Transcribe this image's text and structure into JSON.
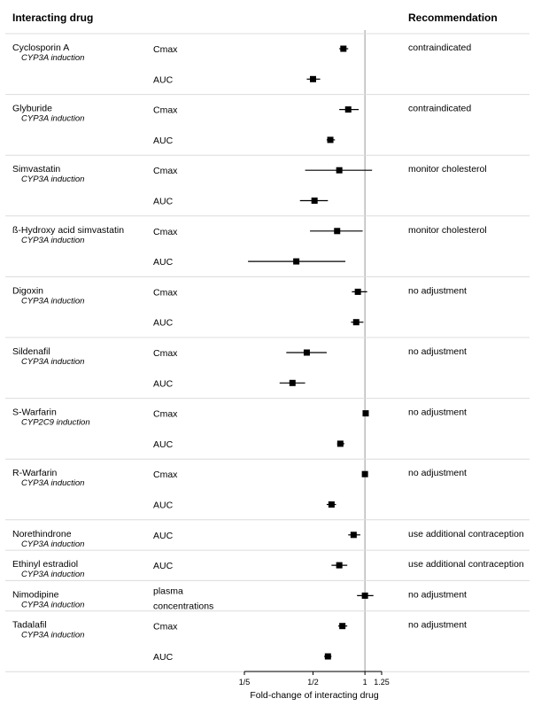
{
  "headers": {
    "drug": "Interacting drug",
    "recommendation": "Recommendation"
  },
  "chart_data": {
    "type": "forest",
    "xlabel": "Fold-change of interacting drug",
    "xscale": "log",
    "xlim": [
      0.2,
      1.25
    ],
    "xticks": [
      {
        "value": 0.2,
        "label": "1/5"
      },
      {
        "value": 0.5,
        "label": "1/2"
      },
      {
        "value": 1,
        "label": "1"
      },
      {
        "value": 1.25,
        "label": "1.25"
      }
    ],
    "reference_line": 1,
    "groups": [
      {
        "drug": "Cyclosporin A",
        "mechanism": "CYP3A induction",
        "recommendation": "contraindicated",
        "rows": [
          {
            "param": "Cmax",
            "est": 0.75,
            "lo": 0.71,
            "hi": 0.8
          },
          {
            "param": "AUC",
            "est": 0.5,
            "lo": 0.46,
            "hi": 0.55
          }
        ]
      },
      {
        "drug": "Glyburide",
        "mechanism": "CYP3A induction",
        "recommendation": "contraindicated",
        "rows": [
          {
            "param": "Cmax",
            "est": 0.8,
            "lo": 0.71,
            "hi": 0.92
          },
          {
            "param": "AUC",
            "est": 0.63,
            "lo": 0.6,
            "hi": 0.67
          }
        ]
      },
      {
        "drug": "Simvastatin",
        "mechanism": "CYP3A induction",
        "recommendation": "monitor cholesterol",
        "rows": [
          {
            "param": "Cmax",
            "est": 0.71,
            "lo": 0.45,
            "hi": 1.1
          },
          {
            "param": "AUC",
            "est": 0.51,
            "lo": 0.42,
            "hi": 0.61
          }
        ]
      },
      {
        "drug": "ß-Hydroxy acid simvastatin",
        "mechanism": "CYP3A induction",
        "recommendation": "monitor cholesterol",
        "rows": [
          {
            "param": "Cmax",
            "est": 0.69,
            "lo": 0.48,
            "hi": 0.97
          },
          {
            "param": "AUC",
            "est": 0.4,
            "lo": 0.21,
            "hi": 0.77
          }
        ]
      },
      {
        "drug": "Digoxin",
        "mechanism": "CYP3A induction",
        "recommendation": "no adjustment",
        "rows": [
          {
            "param": "Cmax",
            "est": 0.91,
            "lo": 0.84,
            "hi": 1.03
          },
          {
            "param": "AUC",
            "est": 0.89,
            "lo": 0.83,
            "hi": 0.98
          }
        ]
      },
      {
        "drug": "Sildenafil",
        "mechanism": "CYP3A induction",
        "recommendation": "no adjustment",
        "rows": [
          {
            "param": "Cmax",
            "est": 0.46,
            "lo": 0.35,
            "hi": 0.6
          },
          {
            "param": "AUC",
            "est": 0.38,
            "lo": 0.32,
            "hi": 0.45
          }
        ]
      },
      {
        "drug": "S-Warfarin",
        "mechanism": "CYP2C9 induction",
        "recommendation": "no adjustment",
        "rows": [
          {
            "param": "Cmax",
            "est": 1.01,
            "lo": 0.98,
            "hi": 1.04
          },
          {
            "param": "AUC",
            "est": 0.72,
            "lo": 0.69,
            "hi": 0.76
          }
        ]
      },
      {
        "drug": "R-Warfarin",
        "mechanism": "CYP3A induction",
        "recommendation": "no adjustment",
        "rows": [
          {
            "param": "Cmax",
            "est": 1.0,
            "lo": 0.97,
            "hi": 1.03
          },
          {
            "param": "AUC",
            "est": 0.64,
            "lo": 0.6,
            "hi": 0.68
          }
        ]
      },
      {
        "drug": "Norethindrone",
        "mechanism": "CYP3A induction",
        "recommendation": "use additional contraception",
        "rows": [
          {
            "param": "AUC",
            "est": 0.86,
            "lo": 0.8,
            "hi": 0.94
          }
        ]
      },
      {
        "drug": "Ethinyl estradiol",
        "mechanism": "CYP3A induction",
        "recommendation": "use additional contraception",
        "rows": [
          {
            "param": "AUC",
            "est": 0.71,
            "lo": 0.64,
            "hi": 0.79
          }
        ]
      },
      {
        "drug": "Nimodipine",
        "mechanism": "CYP3A induction",
        "recommendation": "no adjustment",
        "rows": [
          {
            "param": "plasma concentrations",
            "est": 1.0,
            "lo": 0.9,
            "hi": 1.12
          }
        ]
      },
      {
        "drug": "Tadalafil",
        "mechanism": "CYP3A induction",
        "recommendation": "no adjustment",
        "rows": [
          {
            "param": "Cmax",
            "est": 0.74,
            "lo": 0.7,
            "hi": 0.79
          },
          {
            "param": "AUC",
            "est": 0.61,
            "lo": 0.58,
            "hi": 0.64
          }
        ]
      }
    ]
  }
}
